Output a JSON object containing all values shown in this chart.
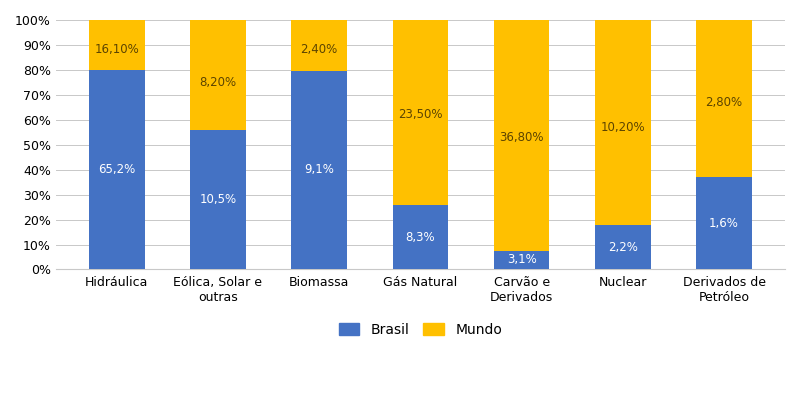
{
  "categories": [
    "Hidráulica",
    "Eólica, Solar e\noutras",
    "Biomassa",
    "Gás Natural",
    "Carvão e\nDerivados",
    "Nuclear",
    "Derivados de\nPetróleo"
  ],
  "brasil_bar": [
    80.0,
    56.0,
    79.5,
    26.0,
    7.5,
    18.0,
    37.0
  ],
  "mundo_bar": [
    20.0,
    44.0,
    20.5,
    74.0,
    92.5,
    82.0,
    63.0
  ],
  "brasil_labels": [
    "65,2%",
    "10,5%",
    "9,1%",
    "8,3%",
    "3,1%",
    "2,2%",
    "1,6%"
  ],
  "mundo_labels": [
    "16,10%",
    "8,20%",
    "2,40%",
    "23,50%",
    "36,80%",
    "10,20%",
    "2,80%"
  ],
  "brasil_color": "#4472C4",
  "mundo_color": "#FFC000",
  "background_color": "#ffffff",
  "ylim": [
    0,
    100
  ],
  "yticks": [
    0,
    10,
    20,
    30,
    40,
    50,
    60,
    70,
    80,
    90,
    100
  ],
  "ytick_labels": [
    "0%",
    "10%",
    "20%",
    "30%",
    "40%",
    "50%",
    "60%",
    "70%",
    "80%",
    "90%",
    "100%"
  ],
  "legend_brasil": "Brasil",
  "legend_mundo": "Mundo",
  "bar_width": 0.55,
  "label_fontsize": 8.5,
  "tick_fontsize": 9,
  "legend_fontsize": 10
}
